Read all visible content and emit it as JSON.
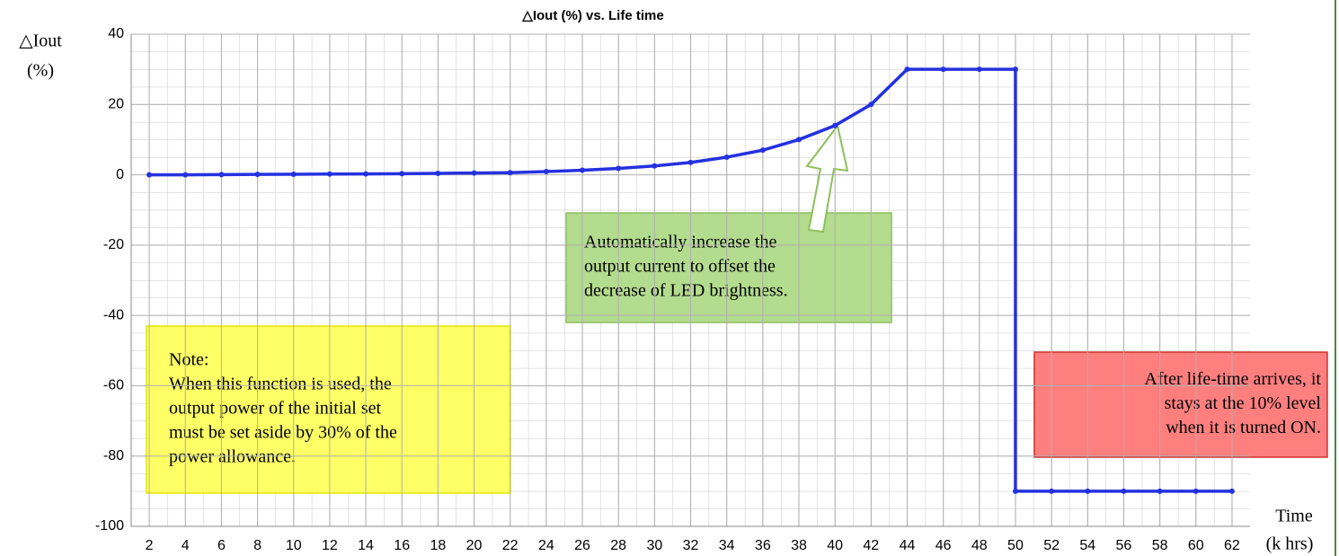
{
  "chart_data": {
    "type": "line",
    "title": "△Iout (%) vs. Life time",
    "y_label": [
      "△Iout",
      "(%)"
    ],
    "x_label": [
      "Time",
      "(k hrs)"
    ],
    "x": [
      2,
      4,
      6,
      8,
      10,
      12,
      14,
      16,
      18,
      20,
      22,
      24,
      26,
      28,
      30,
      32,
      34,
      36,
      38,
      40,
      42,
      44,
      46,
      48,
      50,
      50,
      52,
      54,
      56,
      58,
      60,
      62
    ],
    "series": [
      {
        "name": "△Iout",
        "color": "#2431e0",
        "values": [
          0,
          0,
          0.05,
          0.1,
          0.15,
          0.2,
          0.25,
          0.3,
          0.4,
          0.5,
          0.6,
          0.9,
          1.3,
          1.8,
          2.5,
          3.5,
          5,
          7,
          10,
          14,
          20,
          30,
          30,
          30,
          30,
          -90,
          -90,
          -90,
          -90,
          -90,
          -90,
          -90
        ]
      }
    ],
    "xlim": [
      1,
      63
    ],
    "xticks": [
      2,
      4,
      6,
      8,
      10,
      12,
      14,
      16,
      18,
      20,
      22,
      24,
      26,
      28,
      30,
      32,
      34,
      36,
      38,
      40,
      42,
      44,
      46,
      48,
      50,
      52,
      54,
      56,
      58,
      60,
      62
    ],
    "ylim": [
      -100,
      40
    ],
    "yticks": [
      -100,
      -80,
      -60,
      -40,
      -20,
      0,
      20,
      40
    ],
    "grid": true,
    "annotations": [
      {
        "lines": [
          "Note:",
          "When this function is used, the",
          "output power of the initial set",
          "must be set aside by 30% of the",
          "power allowance."
        ],
        "color": "#ffff66"
      },
      {
        "lines": [
          "Automatically increase the",
          "output current to offset the",
          "decrease of LED brightness."
        ],
        "color": "#b3dc8e"
      },
      {
        "lines": [
          "After life-time arrives, it",
          "stays at the 10% level",
          "when it is turned ON."
        ],
        "color": "#ff7f7f"
      }
    ]
  }
}
